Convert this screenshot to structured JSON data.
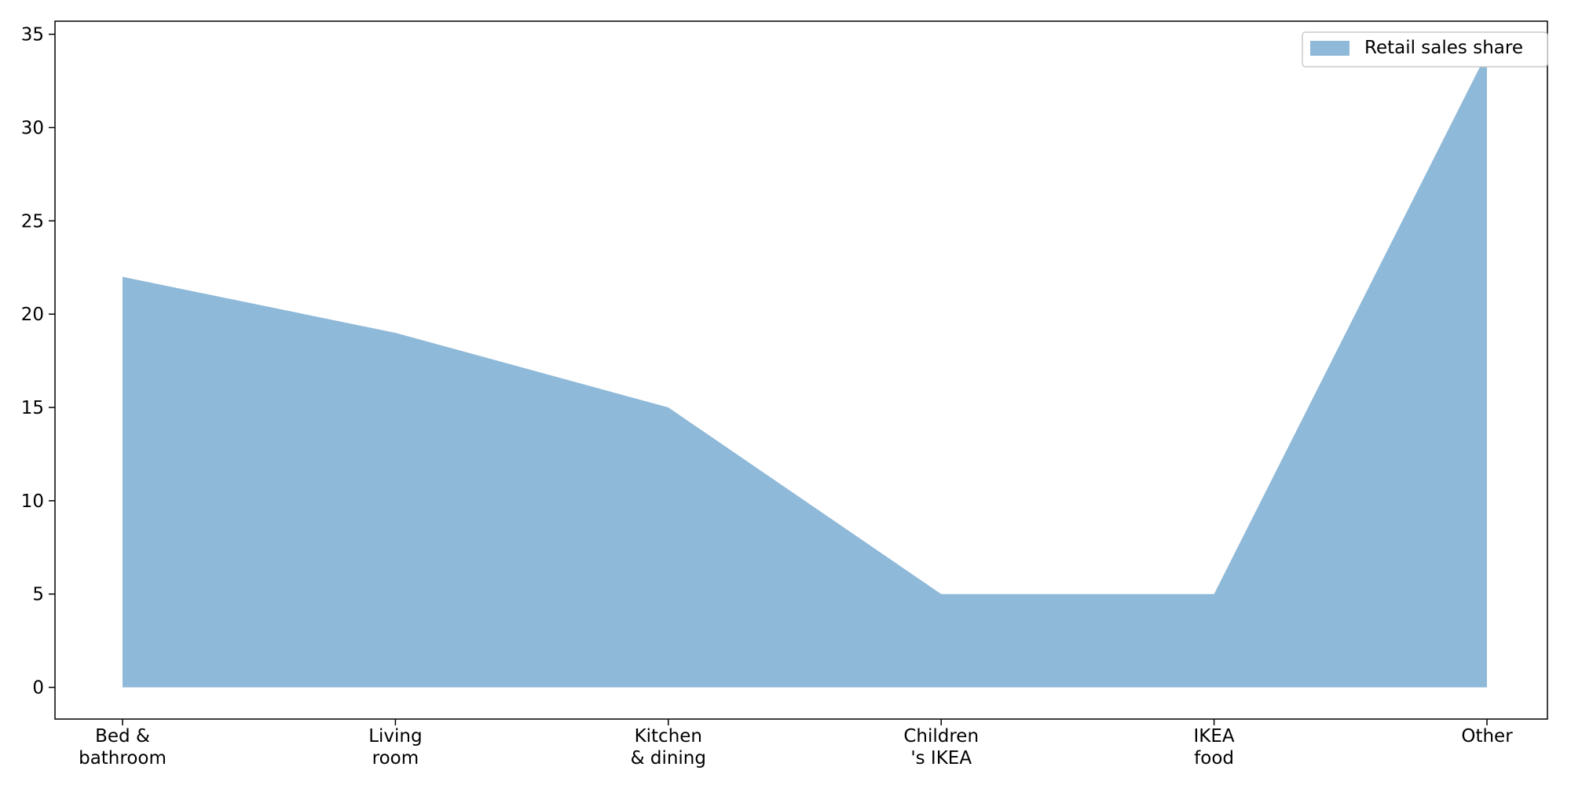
{
  "chart_data": {
    "type": "area",
    "categories": [
      [
        "Bed &",
        "bathroom"
      ],
      [
        "Living",
        "room"
      ],
      [
        "Kitchen",
        "& dining"
      ],
      [
        "Children",
        "'s IKEA"
      ],
      [
        "IKEA",
        "food"
      ],
      [
        "Other"
      ]
    ],
    "series": [
      {
        "name": "Retail sales share",
        "values": [
          22,
          19,
          15,
          5,
          5,
          34
        ],
        "color": "#8fb9d8"
      }
    ],
    "yticks": [
      0,
      5,
      10,
      15,
      20,
      25,
      30,
      35
    ],
    "ylim": [
      -1.7,
      35.7
    ],
    "legend_position": "top-right",
    "grid": false
  }
}
